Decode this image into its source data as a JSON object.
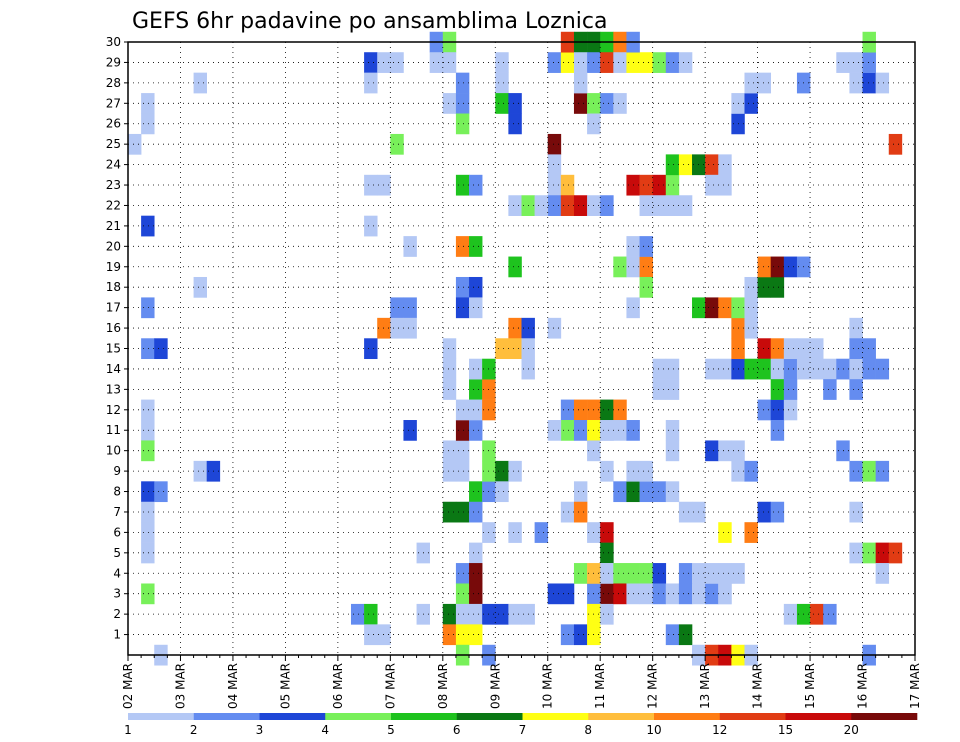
{
  "chart_data": {
    "type": "heatmap",
    "title": "GEFS 6hr padavine po ansamblima Loznica",
    "xlabel": "",
    "ylabel": "",
    "x_tick_labels": [
      "02 MAR",
      "03 MAR",
      "04 MAR",
      "05 MAR",
      "06 MAR",
      "07 MAR",
      "08 MAR",
      "09 MAR",
      "10 MAR",
      "11 MAR",
      "12 MAR",
      "13 MAR",
      "14 MAR",
      "15 MAR",
      "16 MAR",
      "17 MAR"
    ],
    "y_tick_labels": [
      "1",
      "2",
      "3",
      "4",
      "5",
      "6",
      "7",
      "8",
      "9",
      "10",
      "11",
      "12",
      "13",
      "14",
      "15",
      "16",
      "17",
      "18",
      "19",
      "20",
      "21",
      "22",
      "23",
      "24",
      "25",
      "26",
      "27",
      "28",
      "29",
      "30"
    ],
    "xlim_steps": [
      0,
      60
    ],
    "ylim_members": [
      0,
      30
    ],
    "grid": true,
    "colorbar": {
      "placement": "bottom",
      "labels": [
        "1",
        "2",
        "3",
        "4",
        "5",
        "6",
        "7",
        "8",
        "10",
        "12",
        "15",
        "20"
      ],
      "colors": [
        "#b4c8f5",
        "#648cf0",
        "#1e46d7",
        "#78f05a",
        "#1ec31e",
        "#0a7814",
        "#ffff14",
        "#ffbe3c",
        "#ff7d14",
        "#e13c14",
        "#c80a0a",
        "#780a0a"
      ]
    },
    "cells_note": "each cell: [time_step, member, color_class] ; time_step = 6h step from 02 MAR 00z; color_class 0-11 maps to colorbar.colors",
    "cells": [
      [
        0,
        25,
        0
      ],
      [
        1,
        26,
        0
      ],
      [
        1,
        27,
        0
      ],
      [
        1,
        21,
        2
      ],
      [
        1,
        17,
        1
      ],
      [
        1,
        15,
        1
      ],
      [
        2,
        15,
        2
      ],
      [
        1,
        12,
        0
      ],
      [
        1,
        11,
        0
      ],
      [
        1,
        10,
        3
      ],
      [
        1,
        8,
        2
      ],
      [
        2,
        8,
        1
      ],
      [
        1,
        7,
        0
      ],
      [
        1,
        6,
        0
      ],
      [
        1,
        5,
        0
      ],
      [
        1,
        3,
        3
      ],
      [
        2,
        0,
        0
      ],
      [
        5,
        28,
        0
      ],
      [
        5,
        18,
        0
      ],
      [
        5,
        9,
        0
      ],
      [
        6,
        9,
        2
      ],
      [
        18,
        29,
        2
      ],
      [
        19,
        29,
        0
      ],
      [
        20,
        29,
        0
      ],
      [
        18,
        28,
        0
      ],
      [
        18,
        23,
        0
      ],
      [
        19,
        23,
        0
      ],
      [
        18,
        21,
        0
      ],
      [
        20,
        25,
        3
      ],
      [
        21,
        20,
        0
      ],
      [
        20,
        17,
        1
      ],
      [
        21,
        17,
        1
      ],
      [
        19,
        16,
        8
      ],
      [
        20,
        16,
        0
      ],
      [
        21,
        16,
        0
      ],
      [
        18,
        15,
        2
      ],
      [
        21,
        11,
        2
      ],
      [
        17,
        2,
        1
      ],
      [
        18,
        2,
        4
      ],
      [
        18,
        1,
        0
      ],
      [
        19,
        1,
        0
      ],
      [
        22,
        2,
        0
      ],
      [
        22,
        5,
        0
      ],
      [
        23,
        30,
        1
      ],
      [
        24,
        30,
        3
      ],
      [
        23,
        29,
        0
      ],
      [
        24,
        29,
        0
      ],
      [
        25,
        28,
        1
      ],
      [
        24,
        27,
        0
      ],
      [
        25,
        27,
        1
      ],
      [
        25,
        26,
        3
      ],
      [
        25,
        23,
        4
      ],
      [
        26,
        23,
        1
      ],
      [
        25,
        20,
        8
      ],
      [
        26,
        20,
        4
      ],
      [
        25,
        18,
        1
      ],
      [
        26,
        18,
        2
      ],
      [
        25,
        17,
        2
      ],
      [
        26,
        17,
        0
      ],
      [
        24,
        15,
        0
      ],
      [
        24,
        14,
        0
      ],
      [
        24,
        13,
        0
      ],
      [
        24,
        10,
        0
      ],
      [
        25,
        10,
        0
      ],
      [
        25,
        11,
        11
      ],
      [
        26,
        11,
        1
      ],
      [
        25,
        12,
        0
      ],
      [
        24,
        9,
        0
      ],
      [
        25,
        9,
        0
      ],
      [
        26,
        13,
        4
      ],
      [
        27,
        13,
        8
      ],
      [
        26,
        14,
        0
      ],
      [
        27,
        14,
        4
      ],
      [
        26,
        12,
        0
      ],
      [
        27,
        12,
        8
      ],
      [
        26,
        8,
        4
      ],
      [
        27,
        8,
        1
      ],
      [
        24,
        7,
        5
      ],
      [
        25,
        7,
        5
      ],
      [
        26,
        7,
        1
      ],
      [
        27,
        6,
        0
      ],
      [
        26,
        5,
        0
      ],
      [
        25,
        4,
        1
      ],
      [
        26,
        4,
        11
      ],
      [
        25,
        3,
        3
      ],
      [
        26,
        3,
        11
      ],
      [
        24,
        2,
        5
      ],
      [
        25,
        2,
        0
      ],
      [
        26,
        2,
        0
      ],
      [
        27,
        2,
        2
      ],
      [
        28,
        2,
        2
      ],
      [
        24,
        1,
        8
      ],
      [
        25,
        1,
        6
      ],
      [
        26,
        1,
        6
      ],
      [
        25,
        0,
        3
      ],
      [
        27,
        0,
        1
      ],
      [
        27,
        9,
        3
      ],
      [
        27,
        10,
        3
      ],
      [
        28,
        9,
        5
      ],
      [
        29,
        9,
        0
      ],
      [
        28,
        8,
        0
      ],
      [
        28,
        29,
        0
      ],
      [
        28,
        28,
        0
      ],
      [
        28,
        27,
        4
      ],
      [
        29,
        27,
        2
      ],
      [
        29,
        26,
        2
      ],
      [
        29,
        22,
        0
      ],
      [
        30,
        22,
        3
      ],
      [
        29,
        19,
        4
      ],
      [
        29,
        16,
        8
      ],
      [
        30,
        16,
        2
      ],
      [
        28,
        15,
        7
      ],
      [
        29,
        15,
        7
      ],
      [
        30,
        15,
        0
      ],
      [
        30,
        14,
        0
      ],
      [
        29,
        2,
        0
      ],
      [
        30,
        2,
        0
      ],
      [
        29,
        6,
        0
      ],
      [
        31,
        6,
        1
      ],
      [
        32,
        29,
        1
      ],
      [
        33,
        29,
        6
      ],
      [
        33,
        30,
        9
      ],
      [
        34,
        30,
        5
      ],
      [
        35,
        30,
        5
      ],
      [
        36,
        30,
        4
      ],
      [
        37,
        30,
        8
      ],
      [
        34,
        29,
        0
      ],
      [
        35,
        29,
        1
      ],
      [
        36,
        29,
        9
      ],
      [
        37,
        29,
        0
      ],
      [
        32,
        25,
        11
      ],
      [
        32,
        23,
        0
      ],
      [
        33,
        23,
        7
      ],
      [
        32,
        22,
        1
      ],
      [
        33,
        22,
        9
      ],
      [
        34,
        22,
        10
      ],
      [
        35,
        22,
        0
      ],
      [
        36,
        22,
        1
      ],
      [
        32,
        24,
        0
      ],
      [
        31,
        22,
        0
      ],
      [
        32,
        16,
        0
      ],
      [
        33,
        12,
        1
      ],
      [
        34,
        12,
        8
      ],
      [
        35,
        12,
        8
      ],
      [
        33,
        11,
        3
      ],
      [
        32,
        11,
        0
      ],
      [
        34,
        11,
        1
      ],
      [
        35,
        11,
        6
      ],
      [
        36,
        11,
        0
      ],
      [
        36,
        12,
        5
      ],
      [
        37,
        12,
        8
      ],
      [
        36,
        9,
        0
      ],
      [
        35,
        10,
        0
      ],
      [
        34,
        8,
        0
      ],
      [
        33,
        7,
        0
      ],
      [
        34,
        7,
        8
      ],
      [
        35,
        6,
        0
      ],
      [
        36,
        6,
        10
      ],
      [
        36,
        5,
        5
      ],
      [
        36,
        4,
        0
      ],
      [
        36,
        3,
        11
      ],
      [
        35,
        3,
        1
      ],
      [
        33,
        3,
        2
      ],
      [
        32,
        3,
        2
      ],
      [
        34,
        4,
        3
      ],
      [
        35,
        4,
        7
      ],
      [
        33,
        1,
        1
      ],
      [
        34,
        1,
        2
      ],
      [
        35,
        1,
        6
      ],
      [
        35,
        2,
        6
      ],
      [
        36,
        2,
        0
      ],
      [
        34,
        27,
        11
      ],
      [
        35,
        27,
        3
      ],
      [
        36,
        27,
        1
      ],
      [
        37,
        27,
        0
      ],
      [
        34,
        28,
        0
      ],
      [
        35,
        26,
        0
      ],
      [
        36,
        4,
        0
      ],
      [
        37,
        4,
        3
      ],
      [
        38,
        4,
        3
      ],
      [
        39,
        4,
        3
      ],
      [
        40,
        4,
        2
      ],
      [
        37,
        3,
        10
      ],
      [
        38,
        3,
        0
      ],
      [
        39,
        3,
        0
      ],
      [
        40,
        3,
        1
      ],
      [
        41,
        3,
        0
      ],
      [
        42,
        3,
        1
      ],
      [
        43,
        3,
        0
      ],
      [
        44,
        3,
        1
      ],
      [
        45,
        3,
        0
      ],
      [
        37,
        8,
        1
      ],
      [
        38,
        8,
        5
      ],
      [
        39,
        8,
        1
      ],
      [
        40,
        8,
        1
      ],
      [
        41,
        8,
        0
      ],
      [
        38,
        9,
        0
      ],
      [
        39,
        9,
        0
      ],
      [
        36,
        11,
        0
      ],
      [
        37,
        11,
        0
      ],
      [
        38,
        11,
        1
      ],
      [
        37,
        19,
        3
      ],
      [
        38,
        19,
        0
      ],
      [
        39,
        19,
        8
      ],
      [
        38,
        17,
        0
      ],
      [
        38,
        20,
        0
      ],
      [
        39,
        20,
        1
      ],
      [
        38,
        23,
        10
      ],
      [
        39,
        23,
        9
      ],
      [
        40,
        23,
        10
      ],
      [
        41,
        23,
        3
      ],
      [
        39,
        22,
        0
      ],
      [
        40,
        22,
        0
      ],
      [
        41,
        22,
        0
      ],
      [
        42,
        22,
        0
      ],
      [
        41,
        24,
        4
      ],
      [
        42,
        24,
        6
      ],
      [
        43,
        24,
        5
      ],
      [
        44,
        24,
        9
      ],
      [
        45,
        24,
        0
      ],
      [
        38,
        29,
        6
      ],
      [
        39,
        29,
        6
      ],
      [
        40,
        29,
        3
      ],
      [
        41,
        29,
        1
      ],
      [
        42,
        29,
        0
      ],
      [
        38,
        30,
        1
      ],
      [
        39,
        18,
        3
      ],
      [
        40,
        13,
        0
      ],
      [
        41,
        13,
        0
      ],
      [
        41,
        10,
        0
      ],
      [
        41,
        11,
        0
      ],
      [
        40,
        14,
        0
      ],
      [
        41,
        14,
        0
      ],
      [
        41,
        1,
        1
      ],
      [
        42,
        1,
        5
      ],
      [
        43,
        0,
        0
      ],
      [
        44,
        0,
        9
      ],
      [
        45,
        0,
        10
      ],
      [
        46,
        0,
        6
      ],
      [
        47,
        0,
        0
      ],
      [
        42,
        4,
        1
      ],
      [
        43,
        4,
        0
      ],
      [
        44,
        4,
        0
      ],
      [
        45,
        4,
        0
      ],
      [
        46,
        4,
        0
      ],
      [
        45,
        3,
        0
      ],
      [
        42,
        7,
        0
      ],
      [
        43,
        7,
        0
      ],
      [
        44,
        10,
        2
      ],
      [
        45,
        10,
        0
      ],
      [
        46,
        10,
        0
      ],
      [
        46,
        9,
        0
      ],
      [
        47,
        9,
        1
      ],
      [
        45,
        6,
        6
      ],
      [
        47,
        6,
        8
      ],
      [
        44,
        14,
        0
      ],
      [
        45,
        14,
        0
      ],
      [
        46,
        14,
        2
      ],
      [
        47,
        14,
        4
      ],
      [
        46,
        15,
        8
      ],
      [
        46,
        16,
        8
      ],
      [
        47,
        16,
        0
      ],
      [
        43,
        17,
        4
      ],
      [
        44,
        17,
        11
      ],
      [
        45,
        17,
        8
      ],
      [
        46,
        17,
        3
      ],
      [
        47,
        17,
        0
      ],
      [
        44,
        23,
        0
      ],
      [
        45,
        23,
        0
      ],
      [
        46,
        26,
        2
      ],
      [
        46,
        27,
        0
      ],
      [
        47,
        27,
        2
      ],
      [
        47,
        28,
        0
      ],
      [
        48,
        28,
        0
      ],
      [
        47,
        18,
        0
      ],
      [
        48,
        18,
        5
      ],
      [
        49,
        18,
        5
      ],
      [
        48,
        19,
        8
      ],
      [
        49,
        19,
        11
      ],
      [
        50,
        19,
        2
      ],
      [
        51,
        19,
        1
      ],
      [
        48,
        15,
        10
      ],
      [
        49,
        15,
        8
      ],
      [
        48,
        14,
        4
      ],
      [
        49,
        14,
        0
      ],
      [
        50,
        14,
        1
      ],
      [
        51,
        14,
        0
      ],
      [
        52,
        14,
        0
      ],
      [
        53,
        14,
        0
      ],
      [
        50,
        15,
        0
      ],
      [
        51,
        15,
        0
      ],
      [
        52,
        15,
        0
      ],
      [
        48,
        12,
        1
      ],
      [
        49,
        12,
        2
      ],
      [
        50,
        12,
        0
      ],
      [
        49,
        13,
        4
      ],
      [
        50,
        13,
        1
      ],
      [
        49,
        11,
        1
      ],
      [
        48,
        7,
        2
      ],
      [
        49,
        7,
        1
      ],
      [
        50,
        2,
        0
      ],
      [
        51,
        2,
        4
      ],
      [
        52,
        2,
        9
      ],
      [
        53,
        2,
        1
      ],
      [
        51,
        28,
        1
      ],
      [
        53,
        13,
        1
      ],
      [
        54,
        14,
        1
      ],
      [
        55,
        14,
        0
      ],
      [
        56,
        14,
        1
      ],
      [
        57,
        14,
        1
      ],
      [
        55,
        13,
        1
      ],
      [
        54,
        10,
        1
      ],
      [
        55,
        9,
        1
      ],
      [
        56,
        9,
        3
      ],
      [
        57,
        9,
        1
      ],
      [
        55,
        5,
        0
      ],
      [
        56,
        5,
        3
      ],
      [
        57,
        5,
        10
      ],
      [
        58,
        5,
        9
      ],
      [
        57,
        4,
        0
      ],
      [
        55,
        7,
        0
      ],
      [
        55,
        16,
        0
      ],
      [
        55,
        28,
        0
      ],
      [
        56,
        28,
        2
      ],
      [
        57,
        28,
        0
      ],
      [
        55,
        29,
        0
      ],
      [
        56,
        29,
        1
      ],
      [
        56,
        30,
        3
      ],
      [
        54,
        29,
        0
      ],
      [
        58,
        25,
        9
      ],
      [
        56,
        0,
        1
      ],
      [
        55,
        15,
        1
      ],
      [
        56,
        15,
        1
      ]
    ]
  }
}
